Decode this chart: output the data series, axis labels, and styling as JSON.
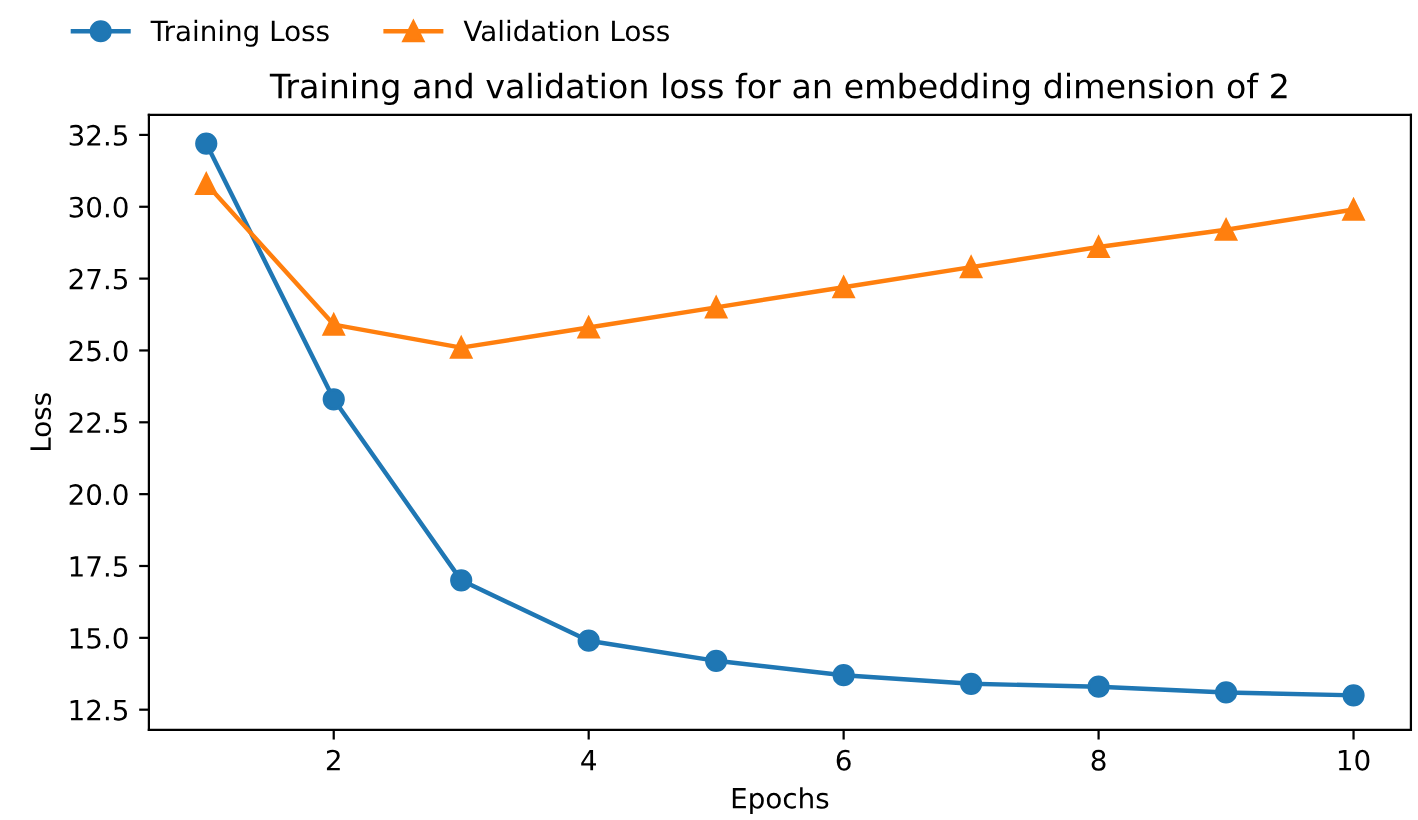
{
  "chart_data": {
    "type": "line",
    "title": "Training and validation loss for an embedding dimension of 2",
    "xlabel": "Epochs",
    "ylabel": "Loss",
    "x": [
      1,
      2,
      3,
      4,
      5,
      6,
      7,
      8,
      9,
      10
    ],
    "series": [
      {
        "name": "Training Loss",
        "color": "#1f77b4",
        "marker": "circle",
        "values": [
          32.2,
          23.3,
          17.0,
          14.9,
          14.2,
          13.7,
          13.4,
          13.3,
          13.1,
          13.0
        ]
      },
      {
        "name": "Validation Loss",
        "color": "#ff7f0e",
        "marker": "triangle",
        "values": [
          30.8,
          25.9,
          25.1,
          25.8,
          26.5,
          27.2,
          27.9,
          28.6,
          29.2,
          29.9
        ]
      }
    ],
    "xlim": [
      0.55,
      10.45
    ],
    "xticks": [
      2,
      4,
      6,
      8,
      10
    ],
    "ylim": [
      11.8,
      33.2
    ],
    "yticks": [
      12.5,
      {
        "value": 15,
        "label": "15.0"
      },
      17.5,
      {
        "value": 20,
        "label": "20.0"
      },
      22.5,
      {
        "value": 25,
        "label": "25.0"
      },
      27.5,
      {
        "value": 30,
        "label": "30.0"
      },
      32.5
    ],
    "grid": false,
    "legend": "top left",
    "line_style": "solid"
  }
}
